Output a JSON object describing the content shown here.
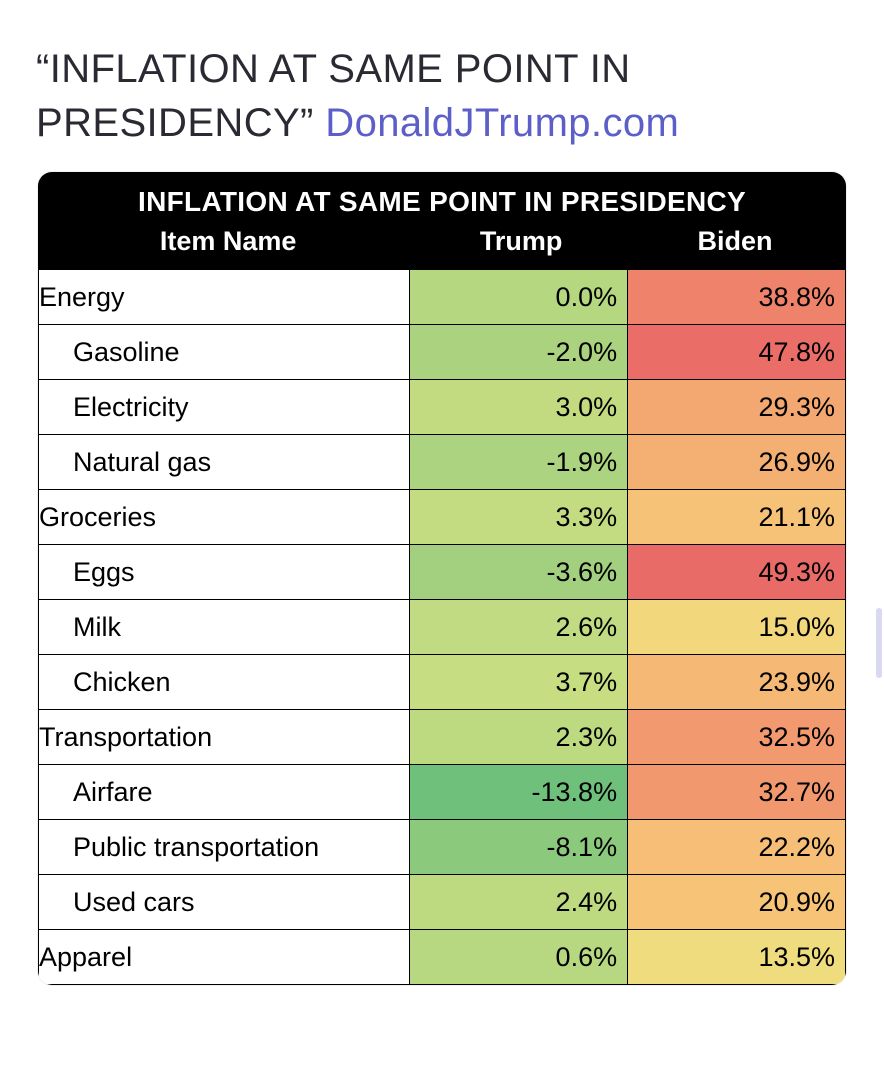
{
  "headline": {
    "quote_text": "“INFLATION AT SAME POINT IN PRESIDENCY” ",
    "link_text": "DonaldJTrump.com",
    "quote_color": "#2b2a33",
    "link_color": "#5b5fc7",
    "fontsize": 40
  },
  "table": {
    "type": "table",
    "title": "INFLATION AT SAME POINT IN PRESIDENCY",
    "header_bg": "#000000",
    "header_fg": "#ffffff",
    "title_fontsize": 28,
    "column_fontsize": 27,
    "cell_fontsize": 27,
    "border_color": "#000000",
    "name_bg": "#ffffff",
    "columns": [
      {
        "key": "name",
        "label": "Item Name",
        "width_pct": 46,
        "align": "left"
      },
      {
        "key": "trump",
        "label": "Trump",
        "width_pct": 28,
        "align": "right"
      },
      {
        "key": "biden",
        "label": "Biden",
        "width_pct": 26,
        "align": "right"
      }
    ],
    "heat_scale": {
      "description": "green = low/negative inflation, red = high inflation",
      "stops": [
        {
          "color": "#63be7b",
          "approx_value": -14
        },
        {
          "color": "#a7d27f",
          "approx_value": 0
        },
        {
          "color": "#e9e483",
          "approx_value": 15
        },
        {
          "color": "#f6c277",
          "approx_value": 25
        },
        {
          "color": "#f3a070",
          "approx_value": 33
        },
        {
          "color": "#ef7b6a",
          "approx_value": 40
        },
        {
          "color": "#e96b68",
          "approx_value": 50
        }
      ]
    },
    "rows": [
      {
        "name": "Energy",
        "indent": 0,
        "trump": "0.0%",
        "trump_bg": "#b4d780",
        "biden": "38.8%",
        "biden_bg": "#ef826a"
      },
      {
        "name": "Gasoline",
        "indent": 1,
        "trump": "-2.0%",
        "trump_bg": "#abd37f",
        "biden": "47.8%",
        "biden_bg": "#ea6d68"
      },
      {
        "name": "Electricity",
        "indent": 1,
        "trump": "3.0%",
        "trump_bg": "#c2db81",
        "biden": "29.3%",
        "biden_bg": "#f3a771"
      },
      {
        "name": "Natural gas",
        "indent": 1,
        "trump": "-1.9%",
        "trump_bg": "#acd37f",
        "biden": "26.9%",
        "biden_bg": "#f4af73"
      },
      {
        "name": "Groceries",
        "indent": 0,
        "trump": "3.3%",
        "trump_bg": "#c4dc81",
        "biden": "21.1%",
        "biden_bg": "#f6c277"
      },
      {
        "name": "Eggs",
        "indent": 1,
        "trump": "-3.6%",
        "trump_bg": "#a3d07e",
        "biden": "49.3%",
        "biden_bg": "#e96b68"
      },
      {
        "name": "Milk",
        "indent": 1,
        "trump": "2.6%",
        "trump_bg": "#c0db81",
        "biden": "15.0%",
        "biden_bg": "#f2d77c"
      },
      {
        "name": "Chicken",
        "indent": 1,
        "trump": "3.7%",
        "trump_bg": "#c6dd81",
        "biden": "23.9%",
        "biden_bg": "#f5b875"
      },
      {
        "name": "Transportation",
        "indent": 0,
        "trump": "2.3%",
        "trump_bg": "#beda81",
        "biden": "32.5%",
        "biden_bg": "#f2996f"
      },
      {
        "name": "Airfare",
        "indent": 1,
        "trump": "-13.8%",
        "trump_bg": "#6ec07b",
        "biden": "32.7%",
        "biden_bg": "#f2986f"
      },
      {
        "name": "Public transportation",
        "indent": 1,
        "trump": "-8.1%",
        "trump_bg": "#8bc97d",
        "biden": "22.2%",
        "biden_bg": "#f6be76"
      },
      {
        "name": "Used cars",
        "indent": 1,
        "trump": "2.4%",
        "trump_bg": "#beda81",
        "biden": "20.9%",
        "biden_bg": "#f6c377"
      },
      {
        "name": "Apparel",
        "indent": 0,
        "trump": "0.6%",
        "trump_bg": "#b7d880",
        "biden": "13.5%",
        "biden_bg": "#eedc7e"
      }
    ]
  },
  "scrollbar_hint_color": "#bfc0e8"
}
